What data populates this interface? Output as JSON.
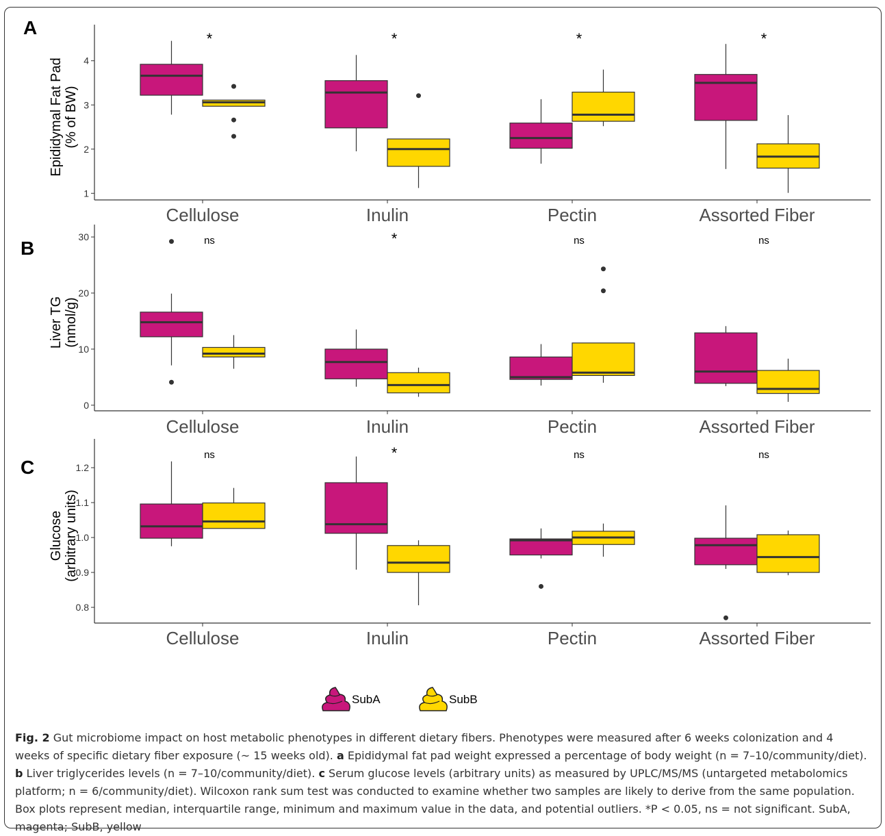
{
  "legend": [
    {
      "label": "SubA",
      "color": "#c8177b"
    },
    {
      "label": "SubB",
      "color": "#ffd700"
    }
  ],
  "caption": {
    "label": "Fig. 2",
    "text": " Gut microbiome impact on host metabolic phenotypes in different dietary fibers. Phenotypes were measured after 6 weeks colonization and 4 weeks of specific dietary fiber exposure (~ 15 weeks old). ",
    "a_label": "a",
    "a_text": " Epididymal fat pad weight expressed a percentage of body weight (n = 7–10/community/diet). ",
    "b_label": "b",
    "b_text": " Liver triglycerides levels (n = 7–10/community/diet). ",
    "c_label": "c",
    "c_text": " Serum glucose levels (arbitrary units) as measured by UPLC/MS/MS (untargeted metabolomics platform; n = 6/community/diet). Wilcoxon rank sum test was conducted to examine whether two samples are likely to derive from the same population. Box plots represent median, interquartile range, minimum and maximum value in the data, and potential outliers. *P < 0.05, ns = not significant. SubA, magenta; SubB, yellow"
  },
  "chart_data": [
    {
      "type": "box",
      "panel": "A",
      "ylabel": [
        "Epididymal Fat Pad",
        "(% of BW)"
      ],
      "ylim": [
        0.85,
        4.6
      ],
      "yticks": [
        1,
        2,
        3,
        4
      ],
      "categories": [
        "Cellulose",
        "Inulin",
        "Pectin",
        "Assorted Fiber"
      ],
      "significance": [
        "*",
        "*",
        "*",
        "*"
      ],
      "series": [
        {
          "name": "SubA",
          "color": "#c8177b",
          "boxes": [
            {
              "min": 2.78,
              "q1": 3.22,
              "median": 3.66,
              "q3": 3.92,
              "max": 4.45,
              "outliers": []
            },
            {
              "min": 1.95,
              "q1": 2.48,
              "median": 3.28,
              "q3": 3.55,
              "max": 4.13,
              "outliers": []
            },
            {
              "min": 1.67,
              "q1": 2.02,
              "median": 2.25,
              "q3": 2.59,
              "max": 3.13,
              "outliers": []
            },
            {
              "min": 1.55,
              "q1": 2.65,
              "median": 3.5,
              "q3": 3.69,
              "max": 4.38,
              "outliers": []
            }
          ]
        },
        {
          "name": "SubB",
          "color": "#ffd700",
          "boxes": [
            {
              "min": 2.97,
              "q1": 2.97,
              "median": 3.06,
              "q3": 3.11,
              "max": 3.11,
              "outliers": [
                3.42,
                2.66,
                2.29
              ]
            },
            {
              "min": 1.12,
              "q1": 1.61,
              "median": 2.0,
              "q3": 2.23,
              "max": 2.23,
              "outliers": [
                3.21
              ]
            },
            {
              "min": 2.52,
              "q1": 2.63,
              "median": 2.78,
              "q3": 3.29,
              "max": 3.8,
              "outliers": []
            },
            {
              "min": 1.01,
              "q1": 1.57,
              "median": 1.83,
              "q3": 2.12,
              "max": 2.77,
              "outliers": []
            }
          ]
        }
      ]
    },
    {
      "type": "box",
      "panel": "B",
      "ylabel": [
        "Liver TG",
        "(nmol/g)"
      ],
      "ylim": [
        -1,
        30.5
      ],
      "yticks": [
        0,
        10,
        20,
        30
      ],
      "categories": [
        "Cellulose",
        "Inulin",
        "Pectin",
        "Assorted Fiber"
      ],
      "significance": [
        "ns",
        "*",
        "ns",
        "ns"
      ],
      "series": [
        {
          "name": "SubA",
          "color": "#c8177b",
          "boxes": [
            {
              "min": 7.1,
              "q1": 12.2,
              "median": 14.8,
              "q3": 16.6,
              "max": 19.9,
              "outliers": [
                29.2,
                4.1
              ]
            },
            {
              "min": 3.3,
              "q1": 4.7,
              "median": 7.7,
              "q3": 10.0,
              "max": 13.5,
              "outliers": []
            },
            {
              "min": 3.5,
              "q1": 4.6,
              "median": 5.0,
              "q3": 8.6,
              "max": 10.9,
              "outliers": []
            },
            {
              "min": 3.4,
              "q1": 3.9,
              "median": 6.0,
              "q3": 12.9,
              "max": 14.1,
              "outliers": []
            }
          ]
        },
        {
          "name": "SubB",
          "color": "#ffd700",
          "boxes": [
            {
              "min": 6.5,
              "q1": 8.6,
              "median": 9.2,
              "q3": 10.3,
              "max": 12.5,
              "outliers": []
            },
            {
              "min": 1.5,
              "q1": 2.2,
              "median": 3.6,
              "q3": 5.8,
              "max": 6.7,
              "outliers": []
            },
            {
              "min": 4.0,
              "q1": 5.3,
              "median": 5.8,
              "q3": 11.1,
              "max": 11.1,
              "outliers": [
                24.3,
                20.4
              ]
            },
            {
              "min": 0.6,
              "q1": 2.1,
              "median": 2.9,
              "q3": 6.2,
              "max": 8.3,
              "outliers": []
            }
          ]
        }
      ]
    },
    {
      "type": "box",
      "panel": "C",
      "ylabel": [
        "Glucose",
        "(arbitrary units)"
      ],
      "ylim": [
        0.755,
        1.255
      ],
      "yticks": [
        0.8,
        0.9,
        1.0,
        1.1,
        1.2
      ],
      "ytick_labels": [
        "0.8",
        "0.9",
        "1.0",
        "1.1",
        "1.2"
      ],
      "categories": [
        "Cellulose",
        "Inulin",
        "Pectin",
        "Assorted Fiber"
      ],
      "significance": [
        "ns",
        "*",
        "ns",
        "ns"
      ],
      "series": [
        {
          "name": "SubA",
          "color": "#c8177b",
          "boxes": [
            {
              "min": 0.975,
              "q1": 0.998,
              "median": 1.032,
              "q3": 1.096,
              "max": 1.218,
              "outliers": []
            },
            {
              "min": 0.908,
              "q1": 1.012,
              "median": 1.038,
              "q3": 1.157,
              "max": 1.232,
              "outliers": []
            },
            {
              "min": 0.94,
              "q1": 0.95,
              "median": 0.992,
              "q3": 0.996,
              "max": 1.026,
              "outliers": [
                0.86
              ]
            },
            {
              "min": 0.91,
              "q1": 0.922,
              "median": 0.978,
              "q3": 0.998,
              "max": 1.092,
              "outliers": [
                0.77
              ]
            }
          ]
        },
        {
          "name": "SubB",
          "color": "#ffd700",
          "boxes": [
            {
              "min": 1.026,
              "q1": 1.026,
              "median": 1.046,
              "q3": 1.099,
              "max": 1.142,
              "outliers": []
            },
            {
              "min": 0.806,
              "q1": 0.9,
              "median": 0.928,
              "q3": 0.977,
              "max": 0.992,
              "outliers": []
            },
            {
              "min": 0.945,
              "q1": 0.98,
              "median": 1.0,
              "q3": 1.018,
              "max": 1.04,
              "outliers": []
            },
            {
              "min": 0.892,
              "q1": 0.9,
              "median": 0.944,
              "q3": 1.008,
              "max": 1.02,
              "outliers": []
            }
          ]
        }
      ]
    }
  ]
}
